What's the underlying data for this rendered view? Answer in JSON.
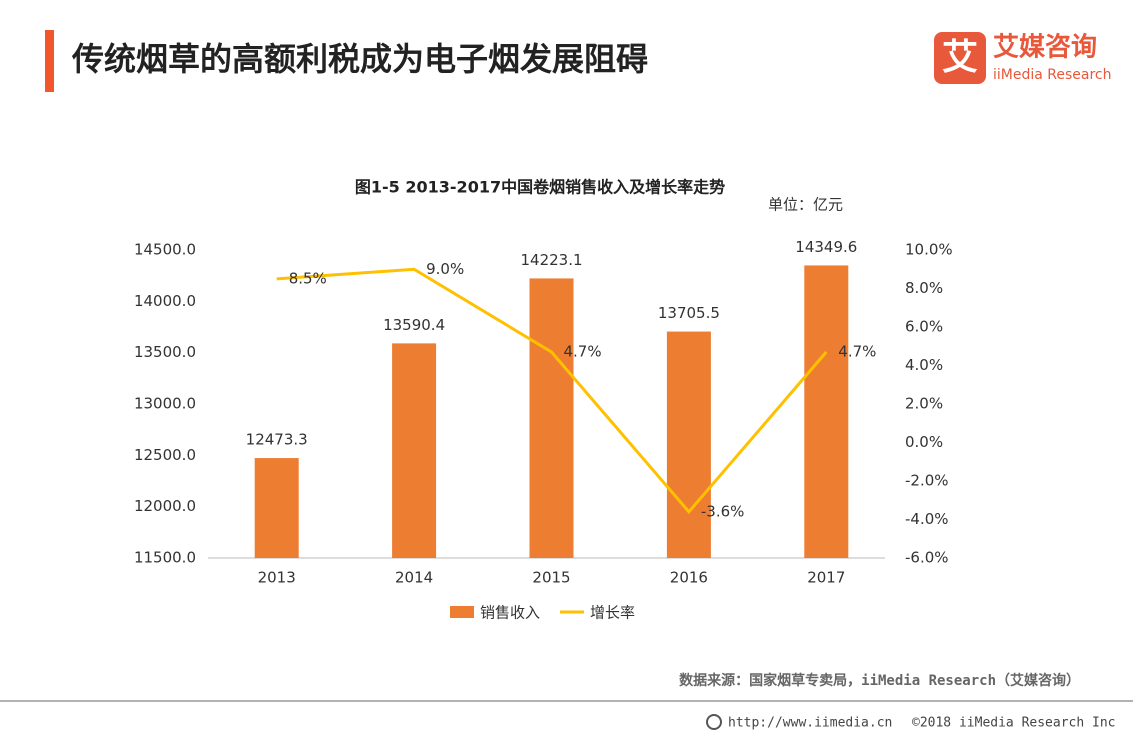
{
  "header": {
    "title": "传统烟草的高额利税成为电子烟发展阻碍"
  },
  "logo": {
    "mark": "艾",
    "name": "艾媒咨询",
    "brand": "iiMedia Research"
  },
  "chart_data": {
    "type": "combo",
    "title": "图1-5 2013-2017中国卷烟销售收入及增长率走势",
    "unit": "单位：亿元",
    "categories": [
      "2013",
      "2014",
      "2015",
      "2016",
      "2017"
    ],
    "series": [
      {
        "name": "销售收入",
        "type": "bar",
        "color": "#ED7D31",
        "values": [
          12473.3,
          13590.4,
          14223.1,
          13705.5,
          14349.6
        ]
      },
      {
        "name": "增长率",
        "type": "line",
        "axis": "y2",
        "color": "#FFC000",
        "values": [
          8.5,
          9.0,
          4.7,
          -3.6,
          4.7
        ],
        "value_labels": [
          "8.5%",
          "9.0%",
          "4.7%",
          "-3.6%",
          "4.7%"
        ]
      }
    ],
    "ylim": [
      11500,
      14500
    ],
    "yticks": [
      {
        "value": 11500,
        "label": "11500.0"
      },
      {
        "value": 12000,
        "label": "12000.0"
      },
      {
        "value": 12500,
        "label": "12500.0"
      },
      {
        "value": 13000,
        "label": "13000.0"
      },
      {
        "value": 13500,
        "label": "13500.0"
      },
      {
        "value": 14000,
        "label": "14000.0"
      },
      {
        "value": 14500,
        "label": "14500.0"
      }
    ],
    "y2lim": [
      -6,
      10
    ],
    "y2ticks": [
      {
        "value": -6,
        "label": "-6.0%"
      },
      {
        "value": -4,
        "label": "-4.0%"
      },
      {
        "value": -2,
        "label": "-2.0%"
      },
      {
        "value": 0,
        "label": "0.0%"
      },
      {
        "value": 2,
        "label": "2.0%"
      },
      {
        "value": 4,
        "label": "4.0%"
      },
      {
        "value": 6,
        "label": "6.0%"
      },
      {
        "value": 8,
        "label": "8.0%"
      },
      {
        "value": 10,
        "label": "10.0%"
      }
    ],
    "legend": "bottom",
    "grid": false
  },
  "source": "数据来源：国家烟草专卖局，iiMedia Research（艾媒咨询）",
  "footer": {
    "url": "http://www.iimedia.cn",
    "copyright": "©2018  iiMedia Research  Inc"
  }
}
